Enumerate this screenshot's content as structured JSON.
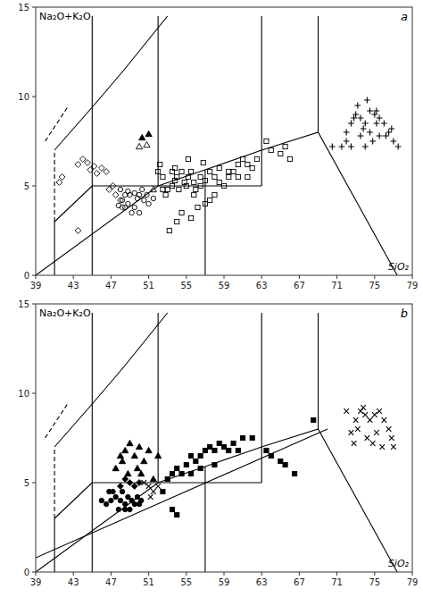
{
  "chart_data": [
    {
      "type": "scatter",
      "title": "a",
      "xlabel": "SiO₂",
      "ylabel": "Na₂O+K₂O",
      "xlim": [
        39,
        79
      ],
      "ylim": [
        0,
        15
      ],
      "xticks": [
        39,
        43,
        47,
        51,
        55,
        59,
        63,
        67,
        71,
        75,
        79
      ],
      "yticks": [
        0,
        5,
        10,
        15
      ],
      "grid": false,
      "series": [
        {
          "type": "line",
          "line_style": "solid",
          "color": "#000000",
          "x": [
            39,
            52,
            57,
            63,
            69,
            77.4
          ],
          "values": [
            0,
            5,
            5.9,
            7,
            8,
            0
          ]
        },
        {
          "type": "line",
          "line_style": "solid",
          "color": "#000000",
          "x": [
            45,
            45
          ],
          "values": [
            0,
            5
          ]
        },
        {
          "type": "line",
          "line_style": "solid",
          "color": "#000000",
          "x": [
            45,
            45
          ],
          "values": [
            5,
            14.5
          ]
        },
        {
          "type": "line",
          "line_style": "solid",
          "color": "#000000",
          "x": [
            52,
            52
          ],
          "values": [
            5,
            14.5
          ]
        },
        {
          "type": "line",
          "line_style": "solid",
          "color": "#000000",
          "x": [
            45,
            52
          ],
          "values": [
            5,
            5
          ]
        },
        {
          "type": "line",
          "line_style": "solid",
          "color": "#000000",
          "x": [
            52,
            63
          ],
          "values": [
            5,
            5
          ]
        },
        {
          "type": "line",
          "line_style": "solid",
          "color": "#000000",
          "x": [
            63,
            63
          ],
          "values": [
            5,
            7
          ]
        },
        {
          "type": "line",
          "line_style": "solid",
          "color": "#000000",
          "x": [
            63,
            63
          ],
          "values": [
            7,
            14.5
          ]
        },
        {
          "type": "line",
          "line_style": "solid",
          "color": "#000000",
          "x": [
            57,
            57
          ],
          "values": [
            5.9,
            0
          ]
        },
        {
          "type": "line",
          "line_style": "solid",
          "color": "#000000",
          "x": [
            41,
            45,
            48.4,
            53
          ],
          "values": [
            7,
            9.4,
            11.5,
            14.5
          ]
        },
        {
          "type": "line",
          "line_style": "solid",
          "color": "#000000",
          "x": [
            41,
            45
          ],
          "values": [
            3,
            5
          ]
        },
        {
          "type": "line",
          "line_style": "solid",
          "color": "#000000",
          "x": [
            41,
            41
          ],
          "values": [
            3,
            0
          ]
        },
        {
          "type": "line",
          "line_style": "solid",
          "color": "#000000",
          "x": [
            69,
            69
          ],
          "values": [
            8,
            14.5
          ]
        },
        {
          "type": "line",
          "line_style": "dashed",
          "color": "#000000",
          "x": [
            41,
            41
          ],
          "values": [
            3,
            7
          ]
        },
        {
          "type": "line",
          "line_style": "dashed",
          "color": "#000000",
          "x": [
            40,
            42.5
          ],
          "values": [
            7.5,
            9.5
          ]
        },
        {
          "type": "scatter",
          "marker": "diamond-open",
          "color": "#000000",
          "x": [
            41.5,
            41.8,
            43.5,
            44.0,
            44.5,
            44.8,
            45.2,
            45.5,
            46.0,
            46.5,
            46.8,
            47.2,
            47.5,
            48.0,
            48.2,
            43.5
          ],
          "values": [
            5.2,
            5.5,
            6.2,
            6.5,
            6.3,
            5.9,
            6.1,
            5.7,
            6.0,
            5.8,
            4.8,
            5.0,
            4.5,
            4.2,
            3.8,
            2.5
          ]
        },
        {
          "type": "scatter",
          "marker": "triangle-open",
          "color": "#000000",
          "x": [
            50.0,
            50.8,
            51.5
          ],
          "values": [
            7.2,
            7.3,
            4.8
          ]
        },
        {
          "type": "scatter",
          "marker": "triangle",
          "color": "#000000",
          "x": [
            50.3,
            51.0
          ],
          "values": [
            7.7,
            7.9
          ]
        },
        {
          "type": "scatter",
          "marker": "circle-open",
          "color": "#000000",
          "x": [
            48.0,
            48.5,
            48.8,
            49.0,
            49.5,
            49.8,
            50.0,
            50.3,
            50.5,
            50.8,
            51.0,
            51.5,
            48.2,
            48.5,
            49.2,
            49.5,
            50.0,
            47.8,
            48.8
          ],
          "values": [
            4.8,
            4.5,
            4.7,
            4.5,
            4.6,
            4.3,
            4.5,
            4.8,
            4.2,
            4.5,
            4.0,
            4.3,
            4.2,
            3.8,
            3.5,
            3.8,
            3.5,
            3.9,
            4.0
          ]
        },
        {
          "type": "scatter",
          "marker": "square-open",
          "color": "#000000",
          "x": [
            52.0,
            52.5,
            52.8,
            53.0,
            53.5,
            53.8,
            54.0,
            54.5,
            54.8,
            55.0,
            55.2,
            55.5,
            55.8,
            56.0,
            56.5,
            57.0,
            57.5,
            58.0,
            58.5,
            59.0,
            59.5,
            60.0,
            60.5,
            61.0,
            61.5,
            62.0,
            53.2,
            54.0,
            54.5,
            55.5,
            56.2,
            57.0,
            57.5,
            58.0,
            52.2,
            53.8,
            55.2,
            56.8,
            64.0,
            65.0,
            65.5,
            66.0,
            63.5,
            52.5,
            53.5,
            54.2,
            55.8,
            56.5,
            58.5,
            59.5,
            60.5,
            61.5,
            62.5
          ],
          "values": [
            5.8,
            4.8,
            4.5,
            4.8,
            5.0,
            5.3,
            5.5,
            5.8,
            5.2,
            5.0,
            5.5,
            5.8,
            5.2,
            4.8,
            5.0,
            5.3,
            5.8,
            5.5,
            5.2,
            5.0,
            5.5,
            5.8,
            6.2,
            6.5,
            6.2,
            6.0,
            2.5,
            3.0,
            3.5,
            3.2,
            3.8,
            4.0,
            4.2,
            4.5,
            6.2,
            6.0,
            6.5,
            6.3,
            7.0,
            6.8,
            7.2,
            6.5,
            7.5,
            5.5,
            5.8,
            4.8,
            4.5,
            5.5,
            6.0,
            5.8,
            5.5,
            5.5,
            6.5
          ]
        },
        {
          "type": "scatter",
          "marker": "plus",
          "color": "#000000",
          "x": [
            71.5,
            72.0,
            72.5,
            73.0,
            73.5,
            74.0,
            74.5,
            75.0,
            75.5,
            76.0,
            76.5,
            73.2,
            74.2,
            75.2,
            72.0,
            73.5,
            74.8,
            75.5,
            77.0,
            72.8,
            73.8,
            74.5,
            75.2,
            76.2,
            76.8,
            77.5,
            70.5,
            72.5,
            74.0
          ],
          "values": [
            7.2,
            8.0,
            8.5,
            9.0,
            8.8,
            8.5,
            9.2,
            9.0,
            8.8,
            8.5,
            8.0,
            9.5,
            9.8,
            9.2,
            7.5,
            7.8,
            7.5,
            7.8,
            7.5,
            8.8,
            8.2,
            8.0,
            8.5,
            7.8,
            8.2,
            7.2,
            7.2,
            7.2,
            7.2
          ]
        }
      ]
    },
    {
      "type": "scatter",
      "title": "b",
      "xlabel": "SiO₂",
      "ylabel": "Na₂O+K₂O",
      "xlim": [
        39,
        79
      ],
      "ylim": [
        0,
        15
      ],
      "xticks": [
        39,
        43,
        47,
        51,
        55,
        59,
        63,
        67,
        71,
        75,
        79
      ],
      "yticks": [
        0,
        5,
        10,
        15
      ],
      "grid": false,
      "series": [
        {
          "type": "line",
          "line_style": "solid",
          "color": "#000000",
          "x": [
            39,
            52,
            57,
            63,
            69,
            77.4
          ],
          "values": [
            0,
            5,
            5.9,
            7,
            8,
            0
          ]
        },
        {
          "type": "line",
          "line_style": "solid",
          "color": "#000000",
          "x": [
            45,
            45
          ],
          "values": [
            0,
            5
          ]
        },
        {
          "type": "line",
          "line_style": "solid",
          "color": "#000000",
          "x": [
            45,
            45
          ],
          "values": [
            5,
            14.5
          ]
        },
        {
          "type": "line",
          "line_style": "solid",
          "color": "#000000",
          "x": [
            52,
            52
          ],
          "values": [
            5,
            14.5
          ]
        },
        {
          "type": "line",
          "line_style": "solid",
          "color": "#000000",
          "x": [
            45,
            52
          ],
          "values": [
            5,
            5
          ]
        },
        {
          "type": "line",
          "line_style": "solid",
          "color": "#000000",
          "x": [
            52,
            63
          ],
          "values": [
            5,
            5
          ]
        },
        {
          "type": "line",
          "line_style": "solid",
          "color": "#000000",
          "x": [
            63,
            63
          ],
          "values": [
            5,
            7
          ]
        },
        {
          "type": "line",
          "line_style": "solid",
          "color": "#000000",
          "x": [
            63,
            63
          ],
          "values": [
            7,
            14.5
          ]
        },
        {
          "type": "line",
          "line_style": "solid",
          "color": "#000000",
          "x": [
            57,
            57
          ],
          "values": [
            5.9,
            0
          ]
        },
        {
          "type": "line",
          "line_style": "solid",
          "color": "#000000",
          "x": [
            41,
            45,
            48.4,
            53
          ],
          "values": [
            7,
            9.4,
            11.5,
            14.5
          ]
        },
        {
          "type": "line",
          "line_style": "solid",
          "color": "#000000",
          "x": [
            41,
            45
          ],
          "values": [
            3,
            5
          ]
        },
        {
          "type": "line",
          "line_style": "solid",
          "color": "#000000",
          "x": [
            41,
            41
          ],
          "values": [
            3,
            0
          ]
        },
        {
          "type": "line",
          "line_style": "solid",
          "color": "#000000",
          "x": [
            69,
            69
          ],
          "values": [
            8,
            14.5
          ]
        },
        {
          "type": "line",
          "line_style": "dashed",
          "color": "#000000",
          "x": [
            41,
            41
          ],
          "values": [
            3,
            7
          ]
        },
        {
          "type": "line",
          "line_style": "dashed",
          "color": "#000000",
          "x": [
            40,
            42.5
          ],
          "values": [
            7.5,
            9.5
          ]
        },
        {
          "type": "scatter",
          "marker": "triangle",
          "color": "#000000",
          "x": [
            48.0,
            48.5,
            49.0,
            49.5,
            50.0,
            50.5,
            51.0,
            50.2,
            49.8,
            48.8,
            51.5,
            52.0,
            47.5,
            48.2
          ],
          "values": [
            6.5,
            6.8,
            7.2,
            6.5,
            7.0,
            6.2,
            6.8,
            5.5,
            5.8,
            5.5,
            5.2,
            6.5,
            5.8,
            6.2
          ]
        },
        {
          "type": "scatter",
          "marker": "diamond",
          "color": "#000000",
          "x": [
            48.5,
            49.0,
            48.0,
            49.5,
            50.0
          ],
          "values": [
            5.2,
            5.0,
            4.8,
            4.8,
            5.0
          ]
        },
        {
          "type": "scatter",
          "marker": "circle",
          "color": "#000000",
          "x": [
            47.5,
            48.0,
            48.5,
            48.8,
            49.2,
            49.5,
            49.8,
            50.0,
            50.2,
            47.0,
            46.5,
            47.8,
            48.5,
            49.0,
            46.0,
            47.2,
            46.8,
            48.2
          ],
          "values": [
            4.2,
            4.0,
            3.8,
            4.2,
            4.0,
            3.8,
            4.2,
            3.8,
            4.0,
            4.0,
            3.8,
            3.5,
            3.5,
            3.5,
            4.0,
            4.5,
            4.5,
            4.5
          ]
        },
        {
          "type": "scatter",
          "marker": "x",
          "color": "#000000",
          "x": [
            50.5,
            51.0,
            51.5,
            52.0,
            51.2
          ],
          "values": [
            5.0,
            4.8,
            4.5,
            4.8,
            4.2
          ]
        },
        {
          "type": "scatter",
          "marker": "square",
          "color": "#000000",
          "x": [
            52.5,
            53.0,
            53.5,
            54.0,
            54.5,
            55.0,
            55.5,
            56.0,
            56.5,
            57.0,
            57.5,
            58.0,
            58.5,
            59.0,
            60.0,
            61.0,
            62.0,
            53.5,
            54.0,
            64.0,
            65.5,
            66.5,
            68.5,
            55.5,
            56.5,
            58.0,
            59.5,
            60.5,
            63.5,
            65.0
          ],
          "values": [
            4.5,
            5.2,
            5.5,
            5.8,
            5.5,
            6.0,
            6.5,
            6.2,
            6.5,
            6.8,
            7.0,
            6.8,
            7.2,
            7.0,
            7.2,
            7.5,
            7.5,
            3.5,
            3.2,
            6.5,
            6.0,
            5.5,
            8.5,
            5.5,
            5.8,
            6.0,
            6.8,
            6.8,
            6.8,
            6.2
          ]
        },
        {
          "type": "scatter",
          "marker": "x",
          "color": "#000000",
          "x": [
            73.0,
            73.5,
            74.0,
            74.5,
            75.0,
            75.5,
            76.0,
            76.5,
            73.2,
            74.2,
            75.2,
            72.5,
            76.8,
            72.0,
            74.8,
            75.8,
            77.0,
            72.8,
            73.8
          ],
          "values": [
            8.5,
            9.0,
            8.8,
            8.5,
            8.8,
            9.0,
            8.5,
            8.0,
            8.0,
            7.5,
            7.8,
            7.8,
            7.5,
            9.0,
            7.2,
            7.0,
            7.0,
            7.2,
            9.2
          ]
        },
        {
          "type": "line",
          "line_style": "solid",
          "color": "#000000",
          "x": [
            39,
            70
          ],
          "values": [
            0.8,
            8.0
          ]
        }
      ]
    }
  ]
}
